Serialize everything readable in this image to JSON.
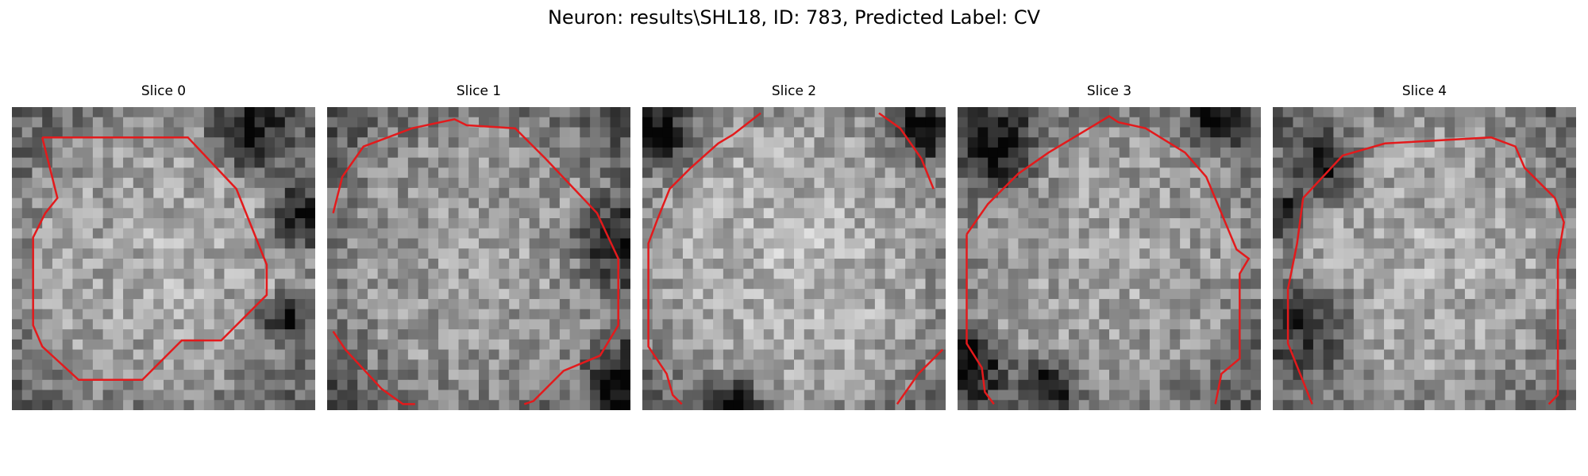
{
  "figure": {
    "title": "Neuron: results\\SHL18, ID: 783, Predicted Label: CV",
    "contour_color": "#e31a1c",
    "grid_size": 30
  },
  "panels": [
    {
      "title": "Slice 0",
      "seed": 11,
      "brightness": 0.62,
      "dark_spots": [
        [
          0.78,
          0.1,
          0.18
        ],
        [
          0.95,
          0.35,
          0.15
        ],
        [
          0.9,
          0.7,
          0.12
        ]
      ],
      "contour": [
        [
          0.1,
          0.1
        ],
        [
          0.3,
          0.1
        ],
        [
          0.58,
          0.1
        ],
        [
          0.74,
          0.27
        ],
        [
          0.8,
          0.42
        ],
        [
          0.84,
          0.52
        ],
        [
          0.84,
          0.62
        ],
        [
          0.69,
          0.77
        ],
        [
          0.56,
          0.77
        ],
        [
          0.43,
          0.9
        ],
        [
          0.22,
          0.9
        ],
        [
          0.1,
          0.79
        ],
        [
          0.07,
          0.72
        ],
        [
          0.07,
          0.43
        ],
        [
          0.11,
          0.35
        ],
        [
          0.15,
          0.3
        ],
        [
          0.1,
          0.1
        ]
      ]
    },
    {
      "title": "Slice 1",
      "seed": 23,
      "brightness": 0.58,
      "dark_spots": [
        [
          0.96,
          0.45,
          0.2
        ],
        [
          0.97,
          0.9,
          0.15
        ]
      ],
      "contour": [
        [
          0.02,
          0.35
        ],
        [
          0.05,
          0.23
        ],
        [
          0.12,
          0.13
        ],
        [
          0.2,
          0.1
        ],
        [
          0.28,
          0.07
        ],
        [
          0.42,
          0.04
        ],
        [
          0.46,
          0.06
        ],
        [
          0.62,
          0.07
        ],
        [
          0.72,
          0.17
        ],
        [
          0.89,
          0.35
        ],
        [
          0.96,
          0.5
        ],
        [
          0.96,
          0.72
        ],
        [
          0.9,
          0.82
        ],
        [
          0.78,
          0.87
        ],
        [
          0.68,
          0.97
        ],
        [
          0.65,
          0.98
        ]
      ],
      "contour2": [
        [
          0.02,
          0.74
        ],
        [
          0.06,
          0.8
        ],
        [
          0.18,
          0.93
        ],
        [
          0.25,
          0.98
        ],
        [
          0.29,
          0.98
        ]
      ]
    },
    {
      "title": "Slice 2",
      "seed": 37,
      "brightness": 0.66,
      "dark_spots": [
        [
          0.92,
          0.08,
          0.15
        ],
        [
          0.05,
          0.1,
          0.15
        ],
        [
          0.3,
          0.98,
          0.15
        ]
      ],
      "contour": [
        [
          0.39,
          0.02
        ],
        [
          0.3,
          0.09
        ],
        [
          0.25,
          0.12
        ],
        [
          0.16,
          0.2
        ],
        [
          0.09,
          0.27
        ],
        [
          0.05,
          0.37
        ],
        [
          0.02,
          0.45
        ],
        [
          0.02,
          0.79
        ],
        [
          0.08,
          0.88
        ],
        [
          0.1,
          0.95
        ],
        [
          0.13,
          0.98
        ]
      ],
      "contour2": [
        [
          0.78,
          0.02
        ],
        [
          0.85,
          0.07
        ],
        [
          0.92,
          0.17
        ],
        [
          0.96,
          0.27
        ]
      ],
      "contour3": [
        [
          0.84,
          0.98
        ],
        [
          0.91,
          0.88
        ],
        [
          0.99,
          0.8
        ]
      ]
    },
    {
      "title": "Slice 3",
      "seed": 53,
      "brightness": 0.6,
      "dark_spots": [
        [
          0.15,
          0.15,
          0.18
        ],
        [
          0.3,
          0.92,
          0.15
        ],
        [
          0.85,
          0.05,
          0.12
        ],
        [
          0.05,
          0.85,
          0.15
        ]
      ],
      "contour": [
        [
          0.03,
          0.42
        ],
        [
          0.1,
          0.32
        ],
        [
          0.2,
          0.22
        ],
        [
          0.3,
          0.15
        ],
        [
          0.4,
          0.09
        ],
        [
          0.45,
          0.06
        ],
        [
          0.5,
          0.03
        ],
        [
          0.53,
          0.05
        ],
        [
          0.62,
          0.07
        ],
        [
          0.75,
          0.15
        ],
        [
          0.82,
          0.23
        ],
        [
          0.87,
          0.35
        ],
        [
          0.92,
          0.47
        ],
        [
          0.96,
          0.5
        ],
        [
          0.93,
          0.55
        ],
        [
          0.93,
          0.83
        ],
        [
          0.87,
          0.88
        ],
        [
          0.85,
          0.98
        ]
      ],
      "contour2": [
        [
          0.03,
          0.42
        ],
        [
          0.03,
          0.78
        ],
        [
          0.08,
          0.86
        ],
        [
          0.09,
          0.94
        ],
        [
          0.12,
          0.98
        ]
      ]
    },
    {
      "title": "Slice 4",
      "seed": 71,
      "brightness": 0.63,
      "dark_spots": [
        [
          0.18,
          0.2,
          0.15
        ],
        [
          0.12,
          0.72,
          0.2
        ],
        [
          0.05,
          0.35,
          0.12
        ]
      ],
      "contour": [
        [
          0.1,
          0.3
        ],
        [
          0.23,
          0.16
        ],
        [
          0.37,
          0.12
        ],
        [
          0.72,
          0.1
        ],
        [
          0.8,
          0.13
        ],
        [
          0.83,
          0.2
        ],
        [
          0.93,
          0.3
        ],
        [
          0.96,
          0.38
        ],
        [
          0.94,
          0.5
        ],
        [
          0.94,
          0.95
        ],
        [
          0.91,
          0.98
        ]
      ],
      "contour2": [
        [
          0.1,
          0.3
        ],
        [
          0.08,
          0.45
        ],
        [
          0.05,
          0.6
        ],
        [
          0.05,
          0.78
        ],
        [
          0.09,
          0.88
        ],
        [
          0.11,
          0.93
        ],
        [
          0.13,
          0.98
        ]
      ]
    }
  ]
}
